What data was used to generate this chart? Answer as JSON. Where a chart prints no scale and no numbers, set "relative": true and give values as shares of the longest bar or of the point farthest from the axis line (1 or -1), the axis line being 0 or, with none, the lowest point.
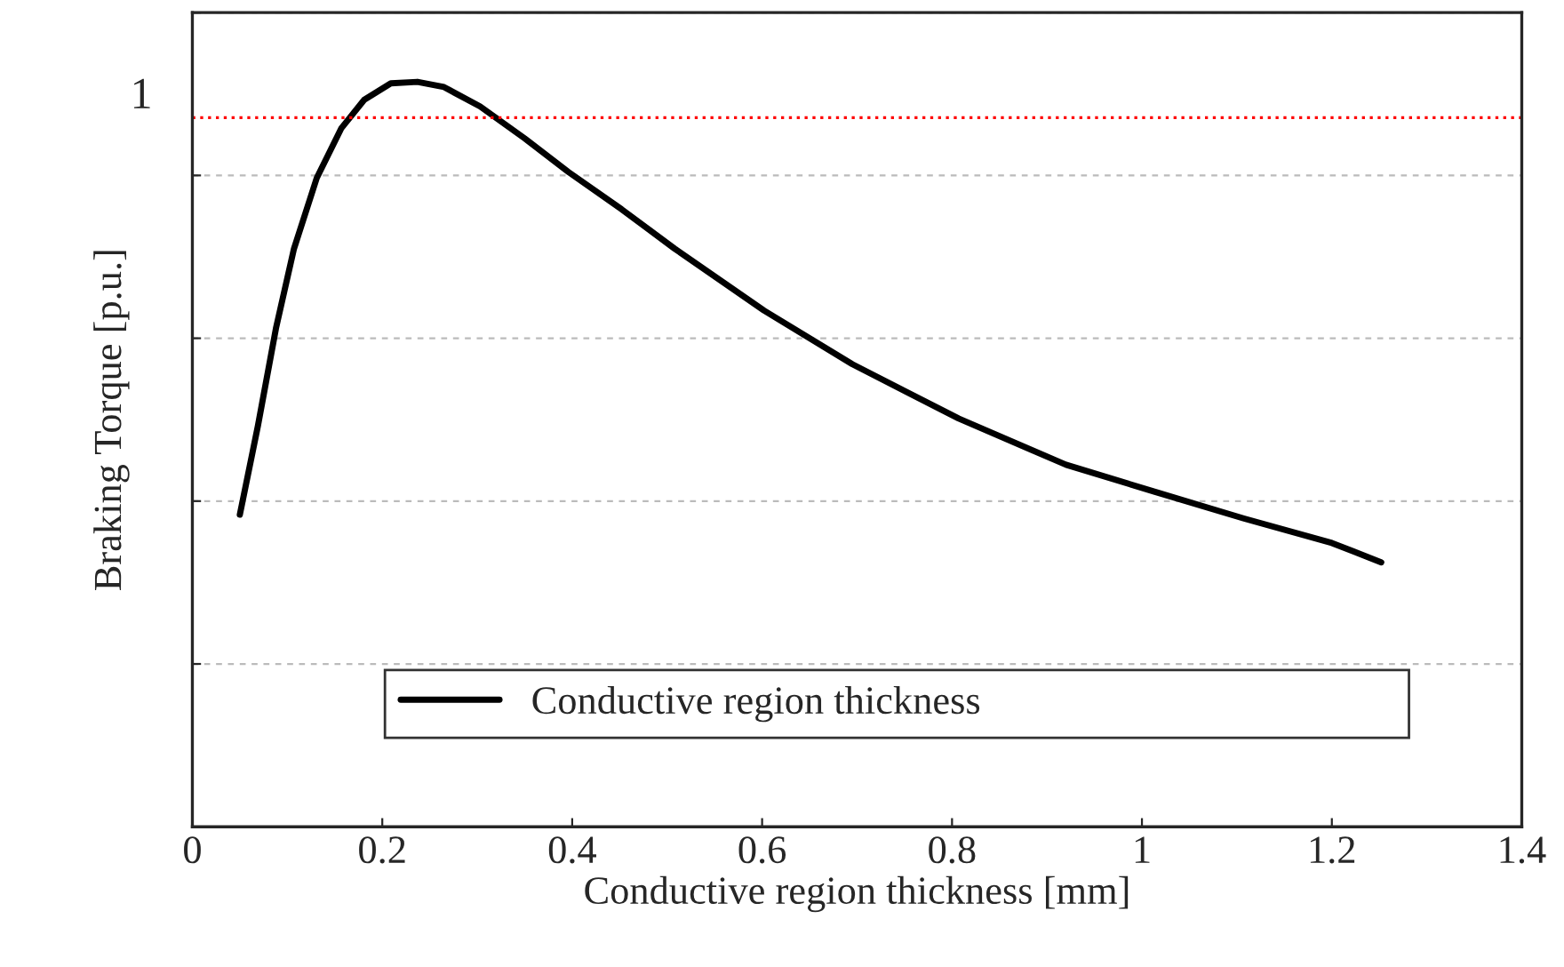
{
  "chart_data": {
    "type": "line",
    "relative": true,
    "xlabel": "Conductive region thickness [mm]",
    "ylabel": "Braking Torque [p.u.]",
    "xlim": [
      0,
      1.4
    ],
    "xticks": [
      0,
      0.2,
      0.4,
      0.6,
      0.8,
      1,
      1.2,
      1.4
    ],
    "x": [
      0.05,
      0.069,
      0.088,
      0.107,
      0.131,
      0.157,
      0.181,
      0.209,
      0.237,
      0.265,
      0.303,
      0.35,
      0.396,
      0.452,
      0.508,
      0.602,
      0.695,
      0.807,
      0.92,
      1.013,
      1.107,
      1.2,
      1.252
    ],
    "series": [
      {
        "name": "Conductive region thickness",
        "color": "#000000",
        "values": [
          0.419,
          0.538,
          0.669,
          0.776,
          0.871,
          0.938,
          0.976,
          0.998,
          1.0,
          0.993,
          0.967,
          0.924,
          0.879,
          0.829,
          0.776,
          0.693,
          0.621,
          0.548,
          0.486,
          0.45,
          0.414,
          0.381,
          0.355
        ]
      }
    ],
    "ref_lines": [
      {
        "axis": "y",
        "value": 0.952,
        "label": "1",
        "color": "#ff0000",
        "line_style": "dotted"
      }
    ],
    "grid": "y",
    "legend": "bottom",
    "marker": "none",
    "line_style": "solid"
  }
}
